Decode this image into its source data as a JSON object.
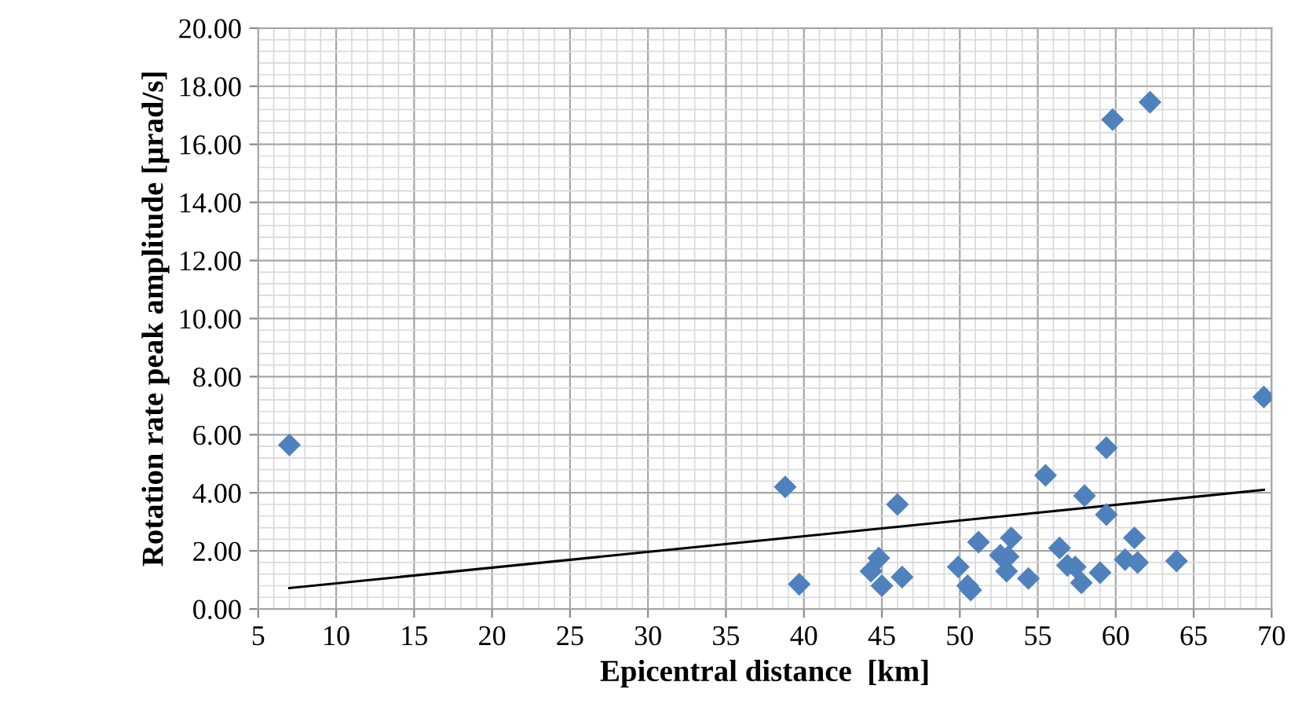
{
  "chart_data": {
    "type": "scatter",
    "xlabel": "Epicentral distance  [km]",
    "ylabel": "Rotation rate peak amplitude [µrad/s]",
    "xlim": [
      5,
      70
    ],
    "xticks": [
      5,
      10,
      15,
      20,
      25,
      30,
      35,
      40,
      45,
      50,
      55,
      60,
      65,
      70
    ],
    "ylim": [
      0,
      20
    ],
    "yticks": [
      {
        "value": 0,
        "label": "0.00"
      },
      {
        "value": 2,
        "label": "2.00"
      },
      {
        "value": 4,
        "label": "4.00"
      },
      {
        "value": 6,
        "label": "6.00"
      },
      {
        "value": 8,
        "label": "8.00"
      },
      {
        "value": 10,
        "label": "10.00"
      },
      {
        "value": 12,
        "label": "12.00"
      },
      {
        "value": 14,
        "label": "14.00"
      },
      {
        "value": 16,
        "label": "16.00"
      },
      {
        "value": 18,
        "label": "18.00"
      },
      {
        "value": 20,
        "label": "20.00"
      }
    ],
    "grid": true,
    "series": [
      {
        "color": "#4f81bd",
        "marker": "diamond",
        "x": [
          7,
          38.8,
          39.7,
          44.3,
          44.8,
          45.0,
          46.0,
          46.3,
          49.9,
          50.5,
          50.7,
          51.2,
          52.6,
          53.0,
          53.1,
          53.3,
          54.4,
          55.5,
          56.4,
          56.9,
          57.4,
          57.8,
          58.0,
          59.0,
          59.4,
          59.4,
          59.8,
          60.6,
          61.2,
          61.4,
          62.2,
          63.9,
          69.5
        ],
        "values": [
          5.65,
          4.2,
          0.85,
          1.3,
          1.75,
          0.8,
          3.6,
          1.1,
          1.45,
          0.8,
          0.65,
          2.3,
          1.85,
          1.3,
          1.8,
          2.45,
          1.05,
          4.6,
          2.1,
          1.5,
          1.45,
          0.9,
          3.9,
          1.25,
          5.55,
          3.25,
          16.85,
          1.7,
          2.45,
          1.6,
          17.45,
          1.65,
          7.3
        ]
      },
      {
        "type": "line",
        "color": "#000000",
        "marker": "none",
        "line_style": "solid",
        "x": [
          7,
          69.5
        ],
        "values": [
          0.72,
          4.1
        ]
      }
    ]
  }
}
